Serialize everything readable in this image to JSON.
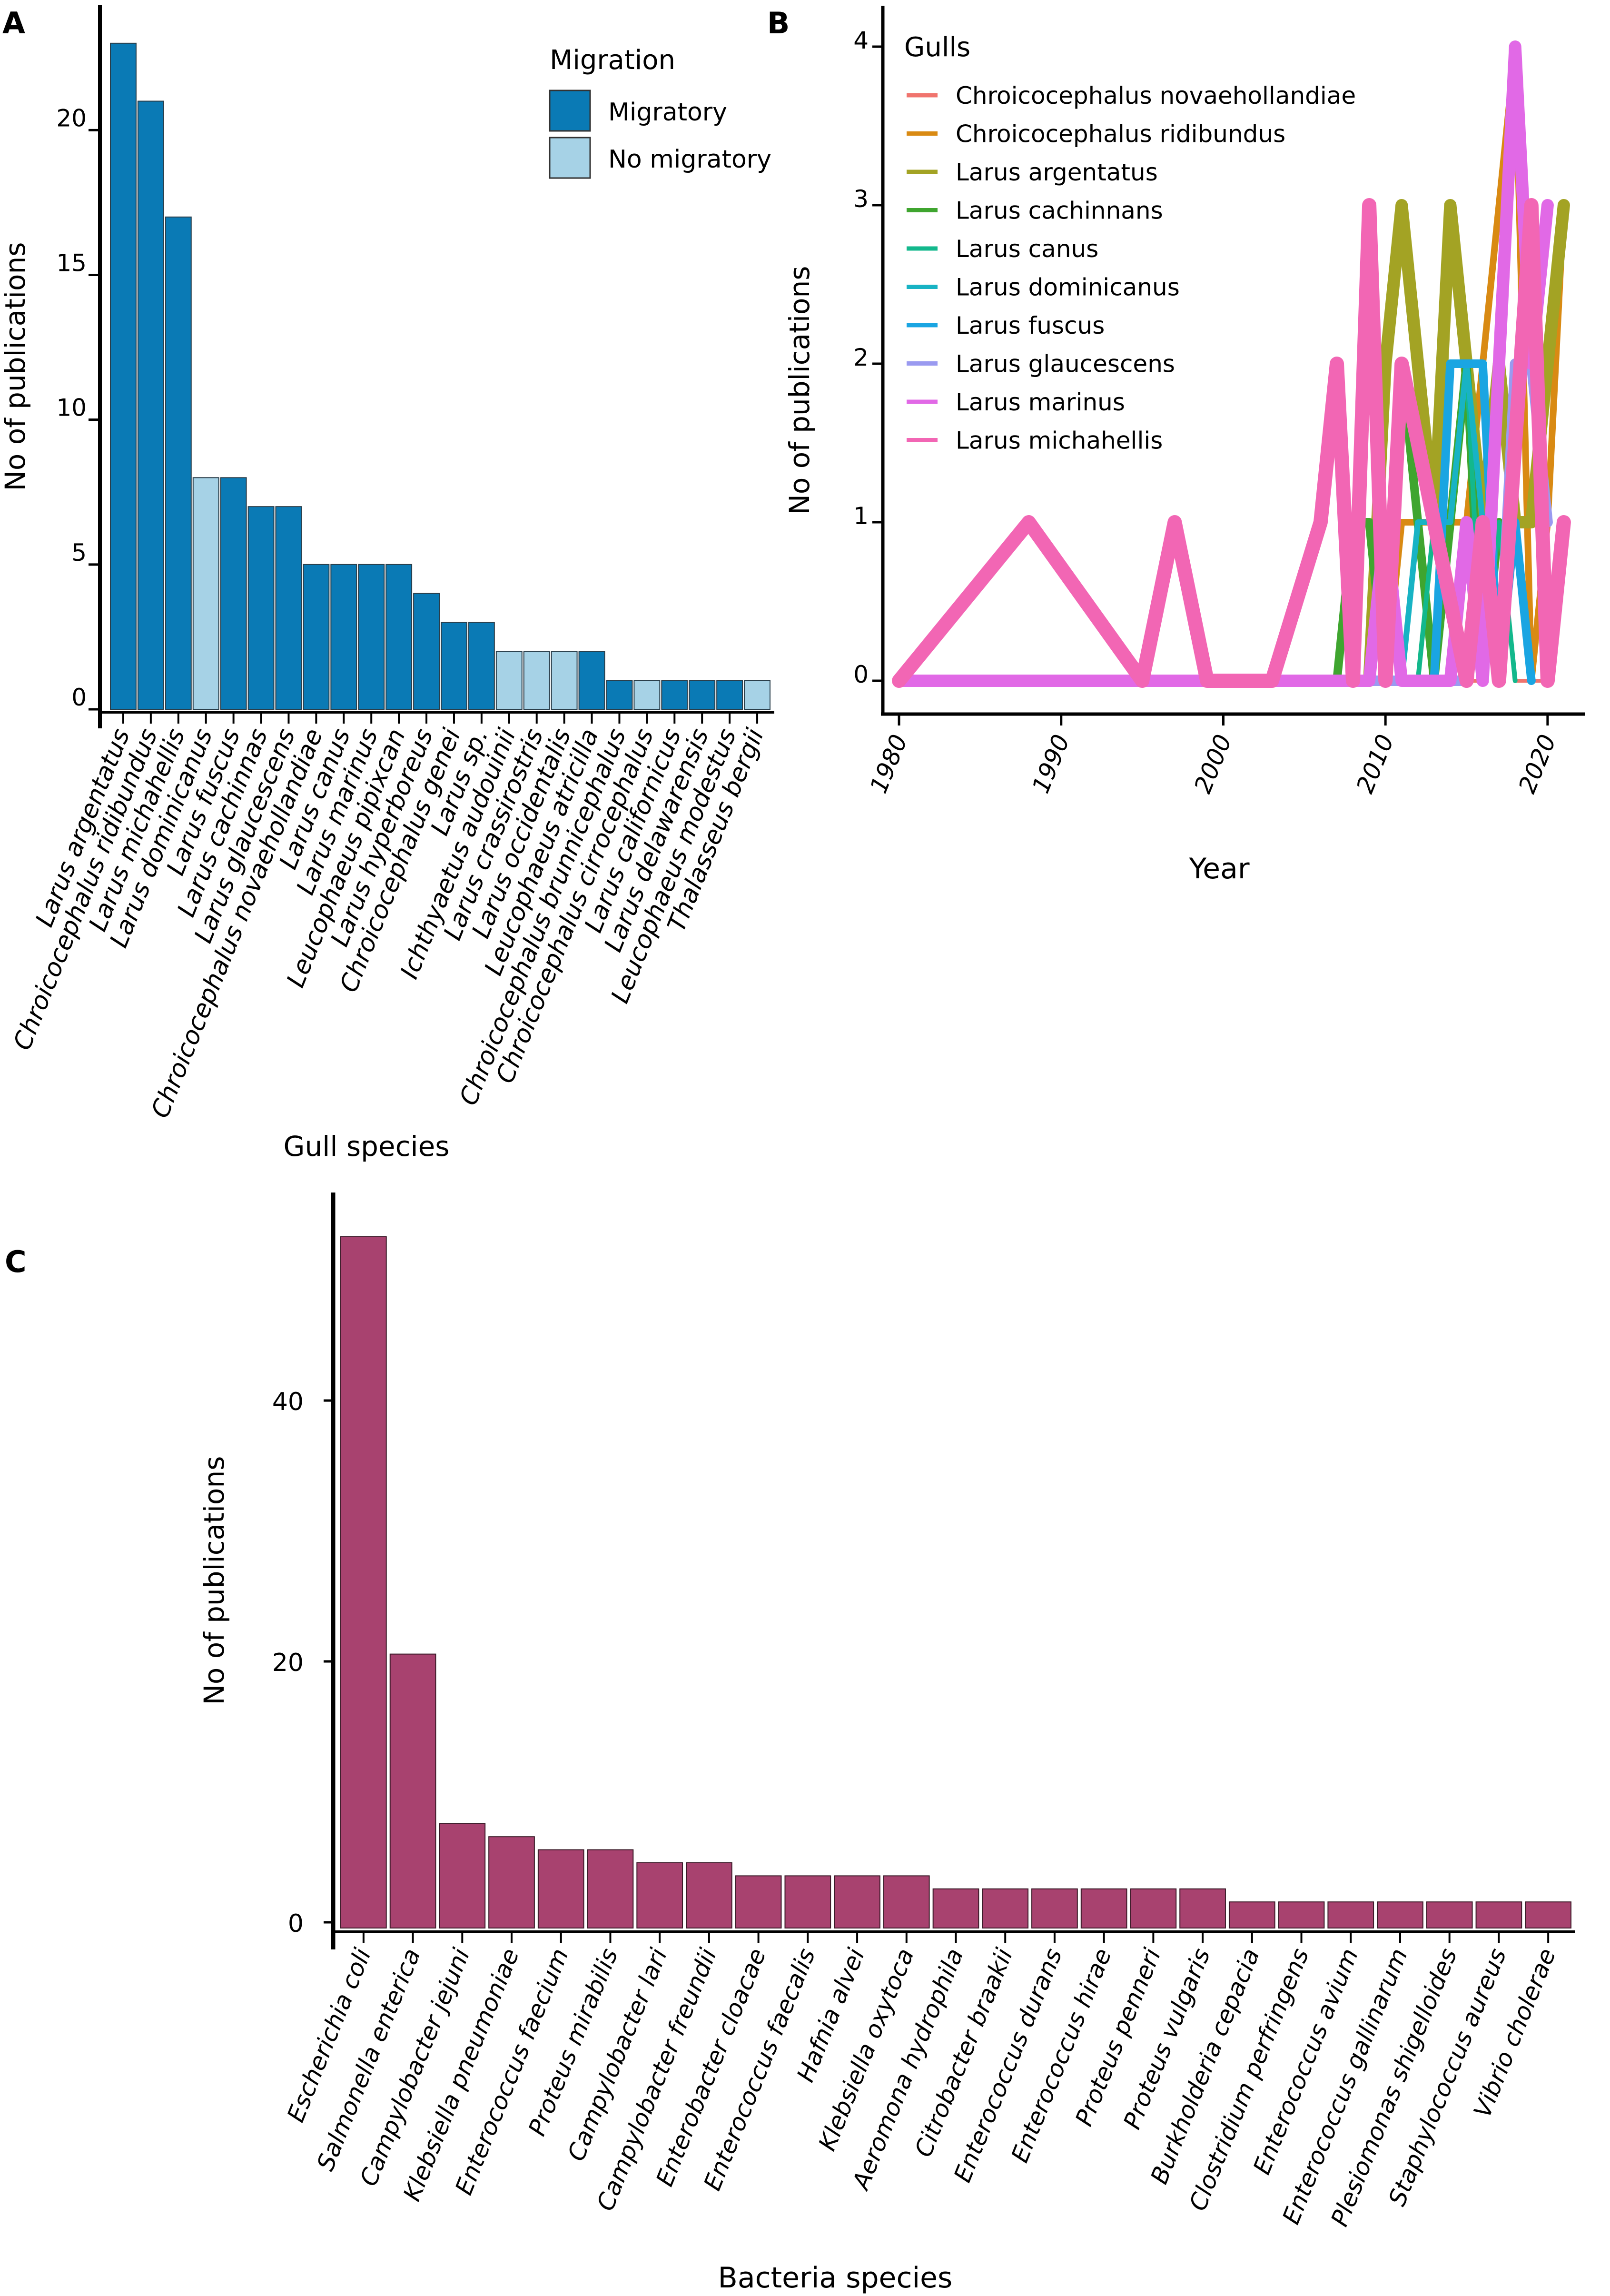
{
  "colors": {
    "migratory": "#0A7AB5",
    "no_migratory": "#A6D2E6",
    "bacteria": "#A8426F",
    "axis": "#000000"
  },
  "chart_data": [
    {
      "panel": "A",
      "type": "bar",
      "xlabel": "Gull species",
      "ylabel": "No of publications",
      "ylim": [
        0,
        24
      ],
      "yticks": [
        0,
        5,
        10,
        15,
        20
      ],
      "legend": {
        "title": "Migration",
        "placement": "top-right",
        "entries": [
          {
            "label": "Migratory",
            "color_key": "migratory"
          },
          {
            "label": "No migratory",
            "color_key": "no_migratory"
          }
        ]
      },
      "categories": [
        "Larus argentatus",
        "Chroicocephalus ridibundus",
        "Larus michahellis",
        "Larus dominicanus",
        "Larus fuscus",
        "Larus cachinnas",
        "Larus glaucescens",
        "Chroicocephalus novaehollandiae",
        "Larus canus",
        "Larus marinus",
        "Leucophaeus pipixcan",
        "Larus hyperboreus",
        "Chroicocephalus genei",
        "Larus sp.",
        "Ichthyaetus audouinii",
        "Larus crassirostris",
        "Larus occidentalis",
        "Leucophaeus atricilla",
        "Chroicocephalus brunnicephalus",
        "Chroicocephalus cirrocephalus",
        "Larus californicus",
        "Larus delawarensis",
        "Leucophaeus modestus",
        "Thalasseus bergii"
      ],
      "values": [
        23,
        21,
        17,
        8,
        8,
        7,
        7,
        5,
        5,
        5,
        5,
        4,
        3,
        3,
        2,
        2,
        2,
        2,
        1,
        1,
        1,
        1,
        1,
        1
      ],
      "migration": [
        "Migratory",
        "Migratory",
        "Migratory",
        "No migratory",
        "Migratory",
        "Migratory",
        "Migratory",
        "Migratory",
        "Migratory",
        "Migratory",
        "Migratory",
        "Migratory",
        "Migratory",
        "Migratory",
        "No migratory",
        "No migratory",
        "No migratory",
        "Migratory",
        "Migratory",
        "No migratory",
        "Migratory",
        "Migratory",
        "Migratory",
        "No migratory"
      ]
    },
    {
      "panel": "B",
      "type": "line",
      "xlabel": "Year",
      "ylabel": "No of publications",
      "xlim": [
        1979,
        2022
      ],
      "ylim": [
        -0.2,
        4.2
      ],
      "xticks": [
        1980,
        1990,
        2000,
        2010,
        2020
      ],
      "yticks": [
        0,
        1,
        2,
        3,
        4
      ],
      "legend": {
        "title": "Gulls",
        "placement": "top-left"
      },
      "series": [
        {
          "name": "Chroicocephalus  novaehollandiae",
          "color": "#F0746E",
          "width": 8,
          "x": [
            1980,
            2016,
            2017,
            2018,
            2020
          ],
          "y": [
            0,
            0,
            1,
            0,
            0
          ]
        },
        {
          "name": "Chroicocephalus  ridibundus",
          "color": "#D98A13",
          "width": 14,
          "x": [
            1980,
            2010,
            2011,
            2012,
            2015,
            2016,
            2017,
            2018,
            2019,
            2020,
            2021
          ],
          "y": [
            0,
            0,
            1,
            1,
            1,
            2,
            3,
            4,
            0,
            1,
            3
          ]
        },
        {
          "name": "Larus  argentatus",
          "color": "#A3A324",
          "width": 26,
          "x": [
            1980,
            2009,
            2010,
            2011,
            2012,
            2013,
            2014,
            2015,
            2016,
            2017,
            2018,
            2019,
            2020,
            2021
          ],
          "y": [
            0,
            0,
            2,
            3,
            2,
            1,
            3,
            2,
            1,
            2,
            1,
            1,
            2,
            3
          ]
        },
        {
          "name": "Larus  cachinnans",
          "color": "#3FA52F",
          "width": 18,
          "x": [
            1980,
            2007,
            2008,
            2009,
            2010,
            2011,
            2012,
            2013,
            2014,
            2015,
            2016,
            2017
          ],
          "y": [
            0,
            0,
            1,
            1,
            0,
            2,
            1,
            0,
            1,
            2,
            0,
            1
          ]
        },
        {
          "name": "Larus  canus",
          "color": "#13B88C",
          "width": 10,
          "x": [
            1980,
            2012,
            2013,
            2014,
            2015,
            2016,
            2017,
            2018
          ],
          "y": [
            0,
            0,
            1,
            1,
            2,
            0,
            1,
            0
          ]
        },
        {
          "name": "Larus  dominicanus",
          "color": "#18B3C4",
          "width": 12,
          "x": [
            1980,
            2011,
            2012,
            2013,
            2014,
            2015,
            2016
          ],
          "y": [
            0,
            0,
            1,
            1,
            1,
            2,
            1
          ]
        },
        {
          "name": "Larus  fuscus",
          "color": "#1AA5E2",
          "width": 18,
          "x": [
            1980,
            2013,
            2014,
            2015,
            2016,
            2017,
            2018,
            2019
          ],
          "y": [
            0,
            0,
            2,
            2,
            2,
            0,
            1,
            0
          ]
        },
        {
          "name": "Larus  glaucescens",
          "color": "#9A9AF0",
          "width": 22,
          "x": [
            1980,
            2015,
            2016,
            2017,
            2018,
            2019,
            2020
          ],
          "y": [
            0,
            0,
            1,
            0,
            2,
            2,
            1
          ]
        },
        {
          "name": "Larus  marinus",
          "color": "#E169E6",
          "width": 26,
          "x": [
            1980,
            2009,
            2010,
            2011,
            2014,
            2015,
            2016,
            2017,
            2018,
            2019,
            2020
          ],
          "y": [
            0,
            0,
            1,
            0,
            0,
            1,
            0,
            2,
            4,
            2,
            3
          ]
        },
        {
          "name": "Larus  michahellis",
          "color": "#F266B4",
          "width": 30,
          "x": [
            1980,
            1988,
            1995,
            1997,
            1999,
            2003,
            2006,
            2007,
            2008,
            2009,
            2010,
            2011,
            2015,
            2016,
            2017,
            2019,
            2020,
            2021
          ],
          "y": [
            0,
            1,
            0,
            1,
            0,
            0,
            1,
            2,
            0,
            3,
            0,
            2,
            0,
            1,
            0,
            3,
            0,
            1
          ]
        }
      ]
    },
    {
      "panel": "C",
      "type": "bar",
      "xlabel": "Bacteria species",
      "ylabel": "No of publications",
      "ylim": [
        0,
        58
      ],
      "yticks": [
        0,
        20,
        40
      ],
      "categories": [
        "Escherichia coli",
        "Salmonella enterica",
        "Campylobacter jejuni",
        "Klebsiella pneumoniae",
        "Enterococcus faecium",
        "Proteus mirabilis",
        "Campylobacter lari",
        "Campylobacter freundii",
        "Enterobacter  cloacae",
        "Enterococcus faecalis",
        "Hafnia alvei",
        "Klebsiella oxytoca",
        "Aeromona hydrophila",
        "Citrobacter braakii",
        "Enterococcus durans",
        "Enterococcus hirae",
        "Proteus penneri",
        "Proteus vulgaris",
        "Burkholderia cepacia",
        "Clostridium perfringens",
        "Enterococcus avium",
        "Enterococcus gallinarum",
        "Plesiomonas shigelloides",
        "Staphylococcus aureus",
        "Vibrio cholerae"
      ],
      "values": [
        53,
        21,
        8,
        7,
        6,
        6,
        5,
        5,
        4,
        4,
        4,
        4,
        3,
        3,
        3,
        3,
        3,
        3,
        2,
        2,
        2,
        2,
        2,
        2,
        2
      ]
    }
  ]
}
